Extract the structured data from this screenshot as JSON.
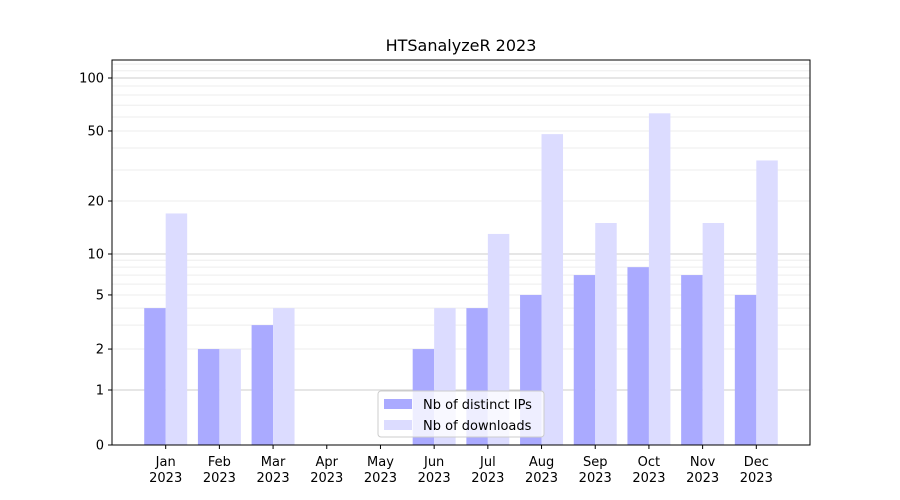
{
  "chart_data": {
    "type": "bar",
    "title": "HTSanalyzeR 2023",
    "categories": [
      {
        "month": "Jan",
        "year": "2023"
      },
      {
        "month": "Feb",
        "year": "2023"
      },
      {
        "month": "Mar",
        "year": "2023"
      },
      {
        "month": "Apr",
        "year": "2023"
      },
      {
        "month": "May",
        "year": "2023"
      },
      {
        "month": "Jun",
        "year": "2023"
      },
      {
        "month": "Jul",
        "year": "2023"
      },
      {
        "month": "Aug",
        "year": "2023"
      },
      {
        "month": "Sep",
        "year": "2023"
      },
      {
        "month": "Oct",
        "year": "2023"
      },
      {
        "month": "Nov",
        "year": "2023"
      },
      {
        "month": "Dec",
        "year": "2023"
      }
    ],
    "series": [
      {
        "name": "Nb of distinct IPs",
        "color": "#aaaaff",
        "values": [
          4,
          2,
          3,
          0,
          0,
          2,
          4,
          5,
          7,
          8,
          7,
          5
        ]
      },
      {
        "name": "Nb of downloads",
        "color": "#dcdcff",
        "values": [
          17,
          2,
          4,
          0,
          0,
          4,
          13,
          48,
          15,
          63,
          15,
          34
        ]
      }
    ],
    "y_scale": "symlog",
    "y_ticks": [
      0,
      1,
      2,
      5,
      10,
      20,
      50,
      100
    ],
    "y_tick_labels": [
      "0",
      "1",
      "2",
      "5",
      "10",
      "20",
      "50",
      "100"
    ],
    "ylim": [
      0,
      120
    ],
    "grid": true,
    "legend_position": "lower center"
  }
}
